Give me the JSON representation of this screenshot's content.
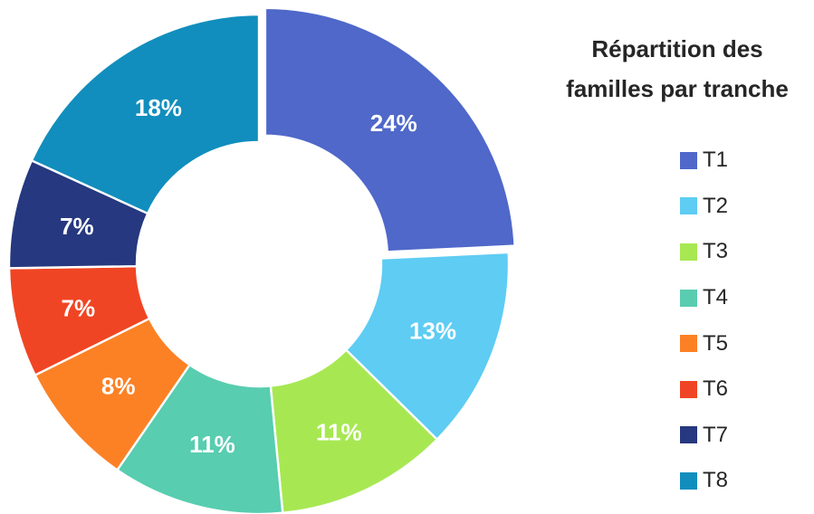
{
  "chart_data": {
    "type": "pie",
    "variant": "donut",
    "title_lines": [
      "Répartition des",
      "familles par tranche"
    ],
    "exploded_slice": "T1",
    "legend_position": "right",
    "slices": [
      {
        "name": "T1",
        "value": 24,
        "label": "24%",
        "color": "#4F68C9"
      },
      {
        "name": "T2",
        "value": 13,
        "label": "13%",
        "color": "#5ECCF3"
      },
      {
        "name": "T3",
        "value": 11,
        "label": "11%",
        "color": "#A7E852"
      },
      {
        "name": "T4",
        "value": 11,
        "label": "11%",
        "color": "#58CDB0"
      },
      {
        "name": "T5",
        "value": 8,
        "label": "8%",
        "color": "#FC8125"
      },
      {
        "name": "T6",
        "value": 7,
        "label": "7%",
        "color": "#F04524"
      },
      {
        "name": "T7",
        "value": 7,
        "label": "7%",
        "color": "#26387F"
      },
      {
        "name": "T8",
        "value": 18,
        "label": "18%",
        "color": "#118EBD"
      }
    ]
  }
}
